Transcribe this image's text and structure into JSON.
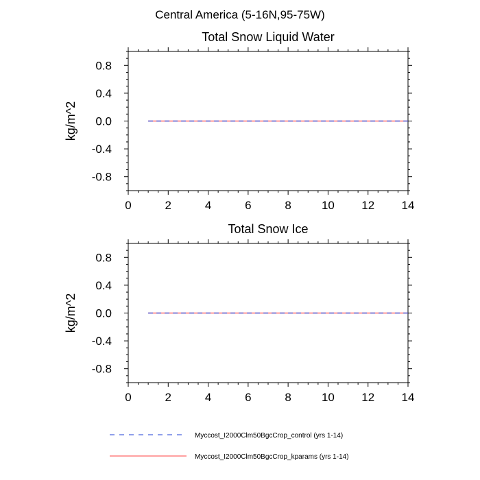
{
  "suptitle": "Central America (5-16N,95-75W)",
  "colors": {
    "control": "#1f3fd6",
    "kparams": "#ff4040",
    "axis": "#000000"
  },
  "chart_data": [
    {
      "type": "line",
      "title": "Total Snow Liquid Water",
      "xlabel": "",
      "ylabel": "kg/m^2",
      "xlim": [
        0,
        14
      ],
      "ylim": [
        -1,
        1
      ],
      "xticks": [
        0,
        2,
        4,
        6,
        8,
        10,
        12,
        14
      ],
      "xtick_labels": [
        "0",
        "2",
        "4",
        "6",
        "8",
        "10",
        "12",
        "14"
      ],
      "yticks": [
        0.8,
        0.4,
        0.0,
        -0.4,
        -0.8
      ],
      "ytick_labels": [
        "0.8",
        "0.4",
        "0.0",
        "-0.4",
        "-0.8"
      ],
      "series": [
        {
          "name": "Myccost_I2000Clm50BgcCrop_control (yrs 1-14)",
          "style": "dashed",
          "color": "#1f3fd6",
          "x": [
            1,
            2,
            3,
            4,
            5,
            6,
            7,
            8,
            9,
            10,
            11,
            12,
            13,
            14
          ],
          "y": [
            0,
            0,
            0,
            0,
            0,
            0,
            0,
            0,
            0,
            0,
            0,
            0,
            0,
            0
          ]
        },
        {
          "name": "Myccost_I2000Clm50BgcCrop_kparams (yrs 1-14)",
          "style": "solid",
          "color": "#ff4040",
          "x": [
            1,
            2,
            3,
            4,
            5,
            6,
            7,
            8,
            9,
            10,
            11,
            12,
            13,
            14
          ],
          "y": [
            0,
            0,
            0,
            0,
            0,
            0,
            0,
            0,
            0,
            0,
            0,
            0,
            0,
            0
          ]
        }
      ]
    },
    {
      "type": "line",
      "title": "Total Snow Ice",
      "xlabel": "",
      "ylabel": "kg/m^2",
      "xlim": [
        0,
        14
      ],
      "ylim": [
        -1,
        1
      ],
      "xticks": [
        0,
        2,
        4,
        6,
        8,
        10,
        12,
        14
      ],
      "xtick_labels": [
        "0",
        "2",
        "4",
        "6",
        "8",
        "10",
        "12",
        "14"
      ],
      "yticks": [
        0.8,
        0.4,
        0.0,
        -0.4,
        -0.8
      ],
      "ytick_labels": [
        "0.8",
        "0.4",
        "0.0",
        "-0.4",
        "-0.8"
      ],
      "series": [
        {
          "name": "Myccost_I2000Clm50BgcCrop_control (yrs 1-14)",
          "style": "dashed",
          "color": "#1f3fd6",
          "x": [
            1,
            2,
            3,
            4,
            5,
            6,
            7,
            8,
            9,
            10,
            11,
            12,
            13,
            14
          ],
          "y": [
            0,
            0,
            0,
            0,
            0,
            0,
            0,
            0,
            0,
            0,
            0,
            0,
            0,
            0
          ]
        },
        {
          "name": "Myccost_I2000Clm50BgcCrop_kparams (yrs 1-14)",
          "style": "solid",
          "color": "#ff4040",
          "x": [
            1,
            2,
            3,
            4,
            5,
            6,
            7,
            8,
            9,
            10,
            11,
            12,
            13,
            14
          ],
          "y": [
            0,
            0,
            0,
            0,
            0,
            0,
            0,
            0,
            0,
            0,
            0,
            0,
            0,
            0
          ]
        }
      ]
    }
  ],
  "legend": [
    {
      "label": "Myccost_I2000Clm50BgcCrop_control (yrs 1-14)",
      "style": "dashed",
      "color": "#1f3fd6"
    },
    {
      "label": "Myccost_I2000Clm50BgcCrop_kparams (yrs 1-14)",
      "style": "solid",
      "color": "#ff4040"
    }
  ]
}
